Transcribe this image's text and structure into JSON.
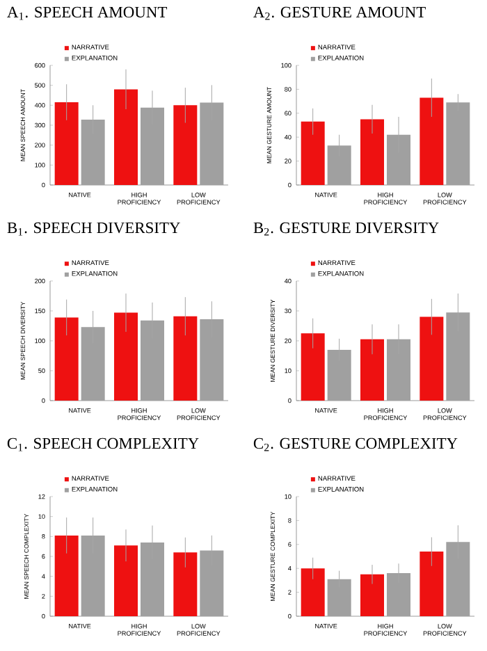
{
  "chart_data": [
    {
      "type": "bar",
      "title": "A$_{1}$. SPEECH AMOUNT",
      "ylabel": "MEAN SPEECH AMOUNT",
      "categories": [
        "NATIVE",
        "HIGH PROFICIENCY",
        "LOW PROFICIENCY"
      ],
      "ylim": [
        0,
        600
      ],
      "yticks": [
        0,
        100,
        200,
        300,
        400,
        500,
        600
      ],
      "legend": "top left",
      "series": [
        {
          "name": "NARRATIVE",
          "color": "#ee1111",
          "values": [
            415,
            480,
            400
          ],
          "errors": [
            90,
            100,
            88
          ]
        },
        {
          "name": "EXPLANATION",
          "color": "#a0a0a0",
          "values": [
            328,
            388,
            413
          ],
          "errors": [
            72,
            85,
            88
          ]
        }
      ]
    },
    {
      "type": "bar",
      "title": "A$_{2}$. GESTURE AMOUNT",
      "ylabel": "MEAN GESTURE AMOUNT",
      "categories": [
        "NATIVE",
        "HIGH PROFICIENCY",
        "LOW PROFICIENCY"
      ],
      "ylim": [
        0,
        100
      ],
      "yticks": [
        0,
        20,
        40,
        60,
        80,
        100
      ],
      "legend": "top left",
      "series": [
        {
          "name": "NARRATIVE",
          "color": "#ee1111",
          "values": [
            53,
            55,
            73
          ],
          "errors": [
            11,
            12,
            16
          ]
        },
        {
          "name": "EXPLANATION",
          "color": "#a0a0a0",
          "values": [
            33,
            42,
            69
          ],
          "errors": [
            9,
            15,
            7
          ]
        }
      ]
    },
    {
      "type": "bar",
      "title": "B$_{1}$. SPEECH DIVERSITY",
      "ylabel": "MEAN SPEECH DIVERSITY",
      "categories": [
        "NATIVE",
        "HIGH PROFICIENCY",
        "LOW PROFICIENCY"
      ],
      "ylim": [
        0,
        200
      ],
      "yticks": [
        0,
        50,
        100,
        150,
        200
      ],
      "legend": "top left",
      "series": [
        {
          "name": "NARRATIVE",
          "color": "#ee1111",
          "values": [
            139,
            147,
            141
          ],
          "errors": [
            30,
            32,
            32
          ]
        },
        {
          "name": "EXPLANATION",
          "color": "#a0a0a0",
          "values": [
            123,
            134,
            136
          ],
          "errors": [
            27,
            30,
            30
          ]
        }
      ]
    },
    {
      "type": "bar",
      "title": "B$_{2}$. GESTURE DIVERSITY",
      "ylabel": "MEAN GESTURE DIVERSITY",
      "categories": [
        "NATIVE",
        "HIGH PROFICIENCY",
        "LOW PROFICIENCY"
      ],
      "ylim": [
        0,
        40
      ],
      "yticks": [
        0,
        10,
        20,
        30,
        40
      ],
      "legend": "top left",
      "series": [
        {
          "name": "NARRATIVE",
          "color": "#ee1111",
          "values": [
            22.5,
            20.5,
            28
          ],
          "errors": [
            5,
            5,
            6
          ]
        },
        {
          "name": "EXPLANATION",
          "color": "#a0a0a0",
          "values": [
            17,
            20.5,
            29.5
          ],
          "errors": [
            3.7,
            5,
            6.3
          ]
        }
      ]
    },
    {
      "type": "bar",
      "title": "C$_{1}$. SPEECH COMPLEXITY",
      "ylabel": "MEAN SPEECH COMPLEXITY",
      "categories": [
        "NATIVE",
        "HIGH PROFICIENCY",
        "LOW PROFICIENCY"
      ],
      "ylim": [
        0,
        12
      ],
      "yticks": [
        0,
        2,
        4,
        6,
        8,
        10,
        12
      ],
      "legend": "top left",
      "series": [
        {
          "name": "NARRATIVE",
          "color": "#ee1111",
          "values": [
            8.1,
            7.1,
            6.4
          ],
          "errors": [
            1.8,
            1.6,
            1.5
          ]
        },
        {
          "name": "EXPLANATION",
          "color": "#a0a0a0",
          "values": [
            8.1,
            7.4,
            6.6
          ],
          "errors": [
            1.8,
            1.7,
            1.5
          ]
        }
      ]
    },
    {
      "type": "bar",
      "title": "C$_{2}$. GESTURE COMPLEXITY",
      "ylabel": "MEAN GESTURE COMPLEXITY",
      "categories": [
        "NATIVE",
        "HIGH PROFICIENCY",
        "LOW PROFICIENCY"
      ],
      "ylim": [
        0,
        10
      ],
      "yticks": [
        0,
        2,
        4,
        6,
        8,
        10
      ],
      "legend": "top left",
      "series": [
        {
          "name": "NARRATIVE",
          "color": "#ee1111",
          "values": [
            4.0,
            3.5,
            5.4
          ],
          "errors": [
            0.9,
            0.8,
            1.2
          ]
        },
        {
          "name": "EXPLANATION",
          "color": "#a0a0a0",
          "values": [
            3.1,
            3.6,
            6.2
          ],
          "errors": [
            0.7,
            0.8,
            1.4
          ]
        }
      ]
    }
  ]
}
